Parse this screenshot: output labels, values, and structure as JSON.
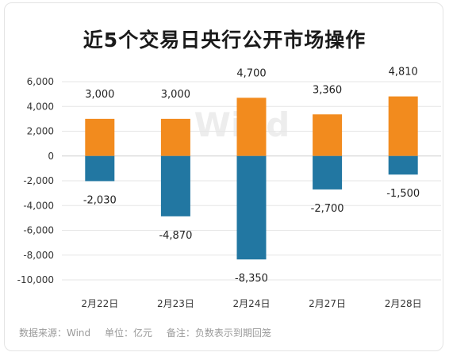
{
  "title": "近5个交易日央行公开市场操作",
  "footer": {
    "source": "数据来源：Wind",
    "unit": "单位：亿元",
    "note": "备注：负数表示到期回笼"
  },
  "watermark": "Wind",
  "colors": {
    "positive": "#f28b1e",
    "negative": "#2277a2",
    "grid": "#e6e6e6",
    "axis_text": "#333333"
  },
  "chart_data": {
    "type": "bar",
    "title": "近5个交易日央行公开市场操作",
    "categories": [
      "2月22日",
      "2月23日",
      "2月24日",
      "2月27日",
      "2月28日"
    ],
    "series": [
      {
        "values": [
          3000,
          3000,
          4700,
          3360,
          4810
        ]
      },
      {
        "values": [
          -2030,
          -4870,
          -8350,
          -2700,
          -1500
        ]
      }
    ],
    "positive_labels": [
      "3,000",
      "3,000",
      "4,700",
      "3,360",
      "4,810"
    ],
    "negative_labels": [
      "-2,030",
      "-4,870",
      "-8,350",
      "-2,700",
      "-1,500"
    ],
    "y_ticks": [
      6000,
      4000,
      2000,
      0,
      -2000,
      -4000,
      -6000,
      -8000,
      -10000
    ],
    "y_tick_labels": [
      "6,000",
      "4,000",
      "2,000",
      "0",
      "-2,000",
      "-4,000",
      "-6,000",
      "-8,000",
      "-10,000"
    ],
    "ylim": [
      -10000,
      6000
    ],
    "xlabel": "",
    "ylabel": "",
    "grid": true,
    "legend": "none"
  }
}
